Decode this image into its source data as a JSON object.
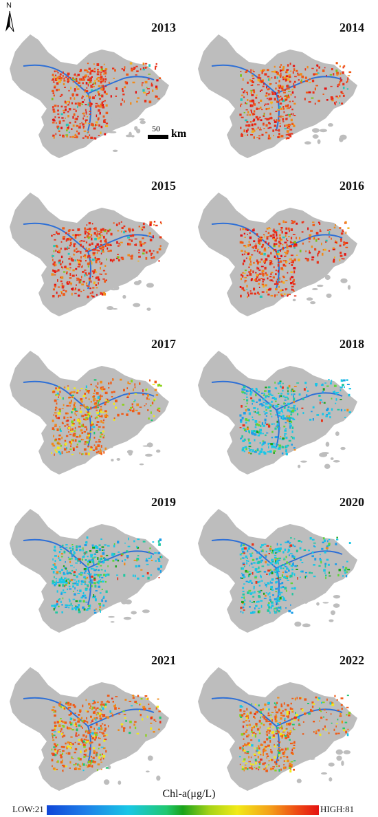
{
  "map": {
    "north_label": "N",
    "scale": {
      "value": "50",
      "unit": "km"
    },
    "colors": {
      "land": "#bdbdbd",
      "river": "#2d6fd6",
      "low": "#1046d8",
      "high": "#e41212"
    },
    "panels": [
      {
        "year": "2013",
        "dominant_level": "high"
      },
      {
        "year": "2014",
        "dominant_level": "high"
      },
      {
        "year": "2015",
        "dominant_level": "high"
      },
      {
        "year": "2016",
        "dominant_level": "high"
      },
      {
        "year": "2017",
        "dominant_level": "mixed"
      },
      {
        "year": "2018",
        "dominant_level": "low"
      },
      {
        "year": "2019",
        "dominant_level": "low"
      },
      {
        "year": "2020",
        "dominant_level": "low"
      },
      {
        "year": "2021",
        "dominant_level": "mixed"
      },
      {
        "year": "2022",
        "dominant_level": "mixed"
      }
    ]
  },
  "legend": {
    "title": "Chl-a(μg/L)",
    "low_label": "LOW:21",
    "high_label": "HIGH:81"
  }
}
